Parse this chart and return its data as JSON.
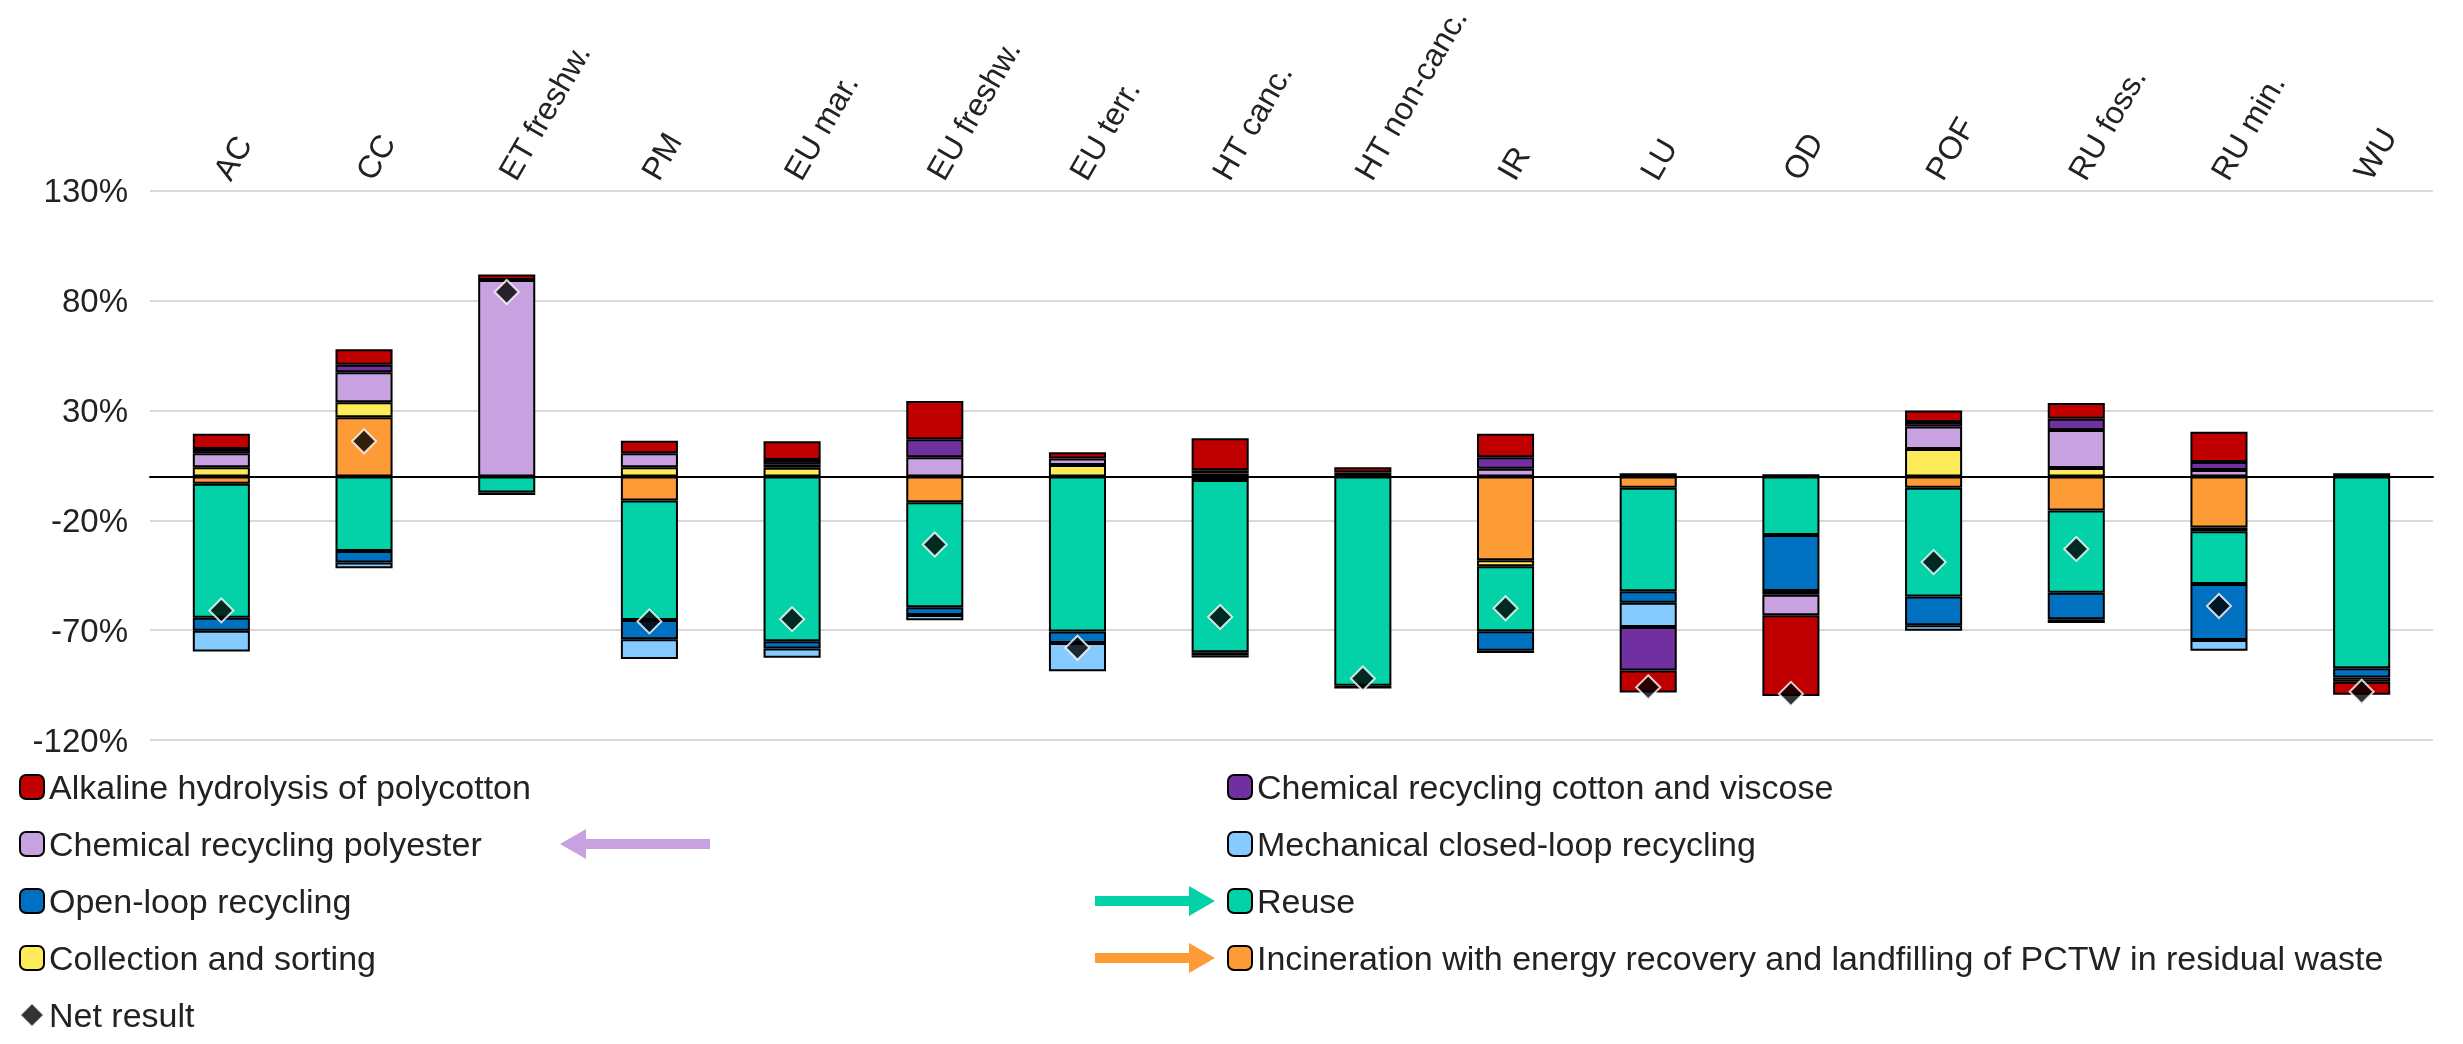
{
  "chart_data": {
    "type": "bar",
    "stacked": true,
    "categories": [
      "AC",
      "CC",
      "ET freshw.",
      "PM",
      "EU mar.",
      "EU freshw.",
      "EU terr.",
      "HT canc.",
      "HT non-canc.",
      "IR",
      "LU",
      "OD",
      "POF",
      "RU foss.",
      "RU min.",
      "WU"
    ],
    "series": [
      {
        "name": "Incineration with energy recovery and landfilling of PCTW in residual waste",
        "color": "#fd9b37",
        "values": [
          -3.3,
          27,
          null,
          -11,
          null,
          -11.8,
          null,
          -1.6,
          null,
          -38.1,
          -5.2,
          null,
          -5.2,
          -15.5,
          -23.3,
          null
        ]
      },
      {
        "name": "Collection and sorting",
        "color": "#fdeb5a",
        "values": [
          4.2,
          6.8,
          null,
          4.2,
          4,
          null,
          5.2,
          null,
          null,
          -2.8,
          null,
          null,
          12.5,
          3.9,
          -1.7,
          null
        ]
      },
      {
        "name": "Reuse",
        "color": "#03d2a8",
        "values": [
          -61,
          -34,
          -7.3,
          -54.4,
          -75,
          -47.8,
          -70.6,
          -78.4,
          -95.3,
          -29.6,
          -47.1,
          -26.7,
          -49.5,
          -37.5,
          -24,
          -87.3
        ]
      },
      {
        "name": "Open-loop recycling",
        "color": "#0070c0",
        "values": [
          -6,
          -5.2,
          -1.2,
          -8.7,
          -3.3,
          -3.5,
          -5.2,
          -1.4,
          -1.2,
          -8.9,
          -5.2,
          -25.5,
          -13,
          -12,
          -25.5,
          -4.2
        ]
      },
      {
        "name": "Mechanical closed-loop recycling",
        "color": "#85cbff",
        "values": [
          -9.4,
          -2.6,
          null,
          -9,
          -4.2,
          -2.4,
          -12.9,
          -1,
          null,
          -1,
          -11,
          -1.7,
          -2.5,
          -1.7,
          -4.9,
          -2
        ]
      },
      {
        "name": "Chemical recycling polyester",
        "color": "#c8a2e0",
        "values": [
          6.4,
          13.6,
          89.5,
          6.4,
          1.5,
          8.7,
          3,
          1.4,
          null,
          3.5,
          1.5,
          -9.3,
          10.3,
          17.2,
          2.9,
          null
        ]
      },
      {
        "name": "Chemical recycling cotton and viscose",
        "color": "#7030a0",
        "values": [
          1.9,
          3.5,
          null,
          null,
          2,
          8.2,
          null,
          1.4,
          1.8,
          5.2,
          -19.9,
          1,
          2,
          5.2,
          3.7,
          1.5
        ]
      },
      {
        "name": "Alkaline hydrolysis of polycotton",
        "color": "#c00000",
        "values": [
          7,
          7,
          2.5,
          5.6,
          8.5,
          17.4,
          2.8,
          14.6,
          2.4,
          10.8,
          -10,
          -36.8,
          5.2,
          7.1,
          13.7,
          -5.9
        ]
      },
      {
        "name": "Net result",
        "type": "scatter",
        "marker": "diamond",
        "color": "#000000",
        "x": [
          "AC",
          "CC",
          "ET freshw.",
          "PM",
          "EU mar.",
          "EU freshw.",
          "EU terr.",
          "HT canc.",
          "HT non-canc.",
          "IR",
          "LU",
          "OD",
          "POF",
          "RU foss.",
          "RU min.",
          "WU"
        ],
        "values": [
          -61,
          16,
          84,
          -66,
          -65,
          -31,
          -78,
          -64,
          -92,
          -60,
          -96,
          -99,
          -39,
          -33,
          -59,
          -98
        ]
      }
    ],
    "ylim": [
      -120,
      130
    ],
    "yticks": [
      {
        "value": -120,
        "label": "-120%"
      },
      {
        "value": -70,
        "label": "-70%"
      },
      {
        "value": -20,
        "label": "-20%"
      },
      {
        "value": 30,
        "label": "30%"
      },
      {
        "value": 80,
        "label": "80%"
      },
      {
        "value": 130,
        "label": "130%"
      }
    ],
    "grid": "y",
    "legend": "bottom"
  }
}
